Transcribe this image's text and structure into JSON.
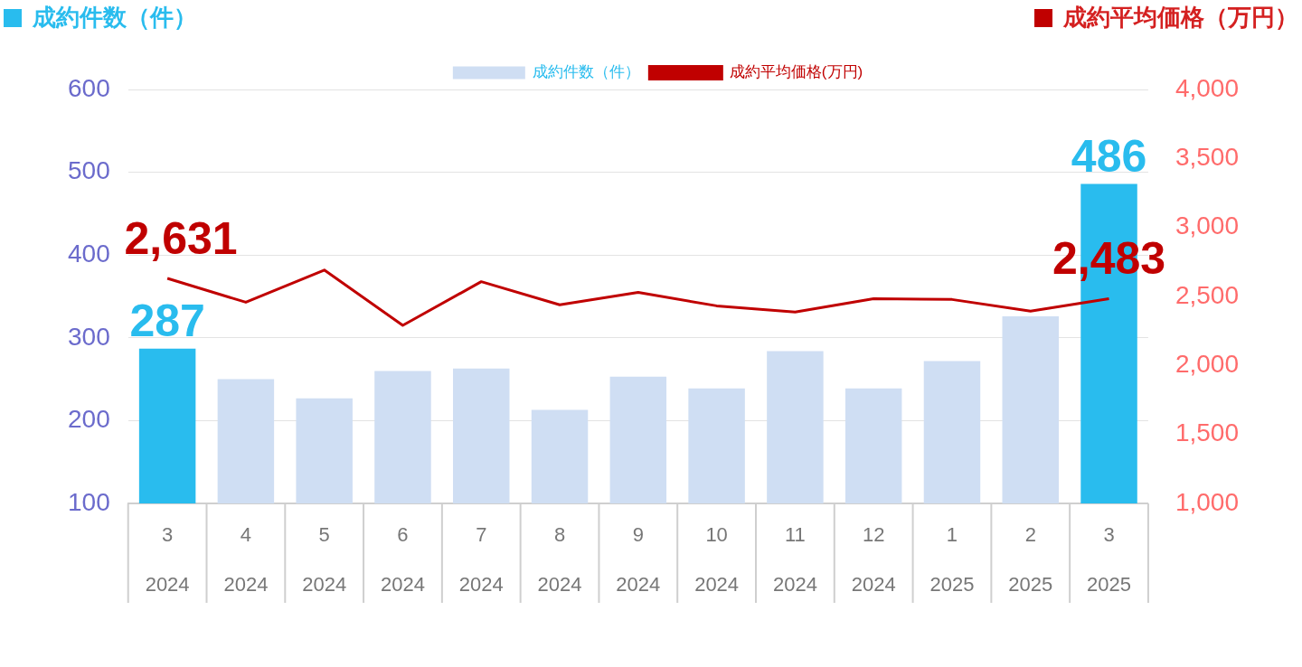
{
  "chart_data": {
    "type": "bar",
    "ylabel": "成約件数（件）",
    "y2label": "成約平均価格（万円）",
    "categories": [
      "3\n2024",
      "4\n2024",
      "5\n2024",
      "6\n2024",
      "7\n2024",
      "8\n2024",
      "9\n2024",
      "10\n2024",
      "11\n2024",
      "12\n2024",
      "1\n2025",
      "2\n2025",
      "3\n2025"
    ],
    "series": [
      {
        "name": "成約件数（件）",
        "color": "#cfdef3",
        "colors": [
          "#29bcee",
          "#cfdef3",
          "#cfdef3",
          "#cfdef3",
          "#cfdef3",
          "#cfdef3",
          "#cfdef3",
          "#cfdef3",
          "#cfdef3",
          "#cfdef3",
          "#cfdef3",
          "#cfdef3",
          "#29bcee"
        ],
        "values": [
          287,
          250,
          227,
          260,
          263,
          213,
          253,
          239,
          284,
          239,
          272,
          326,
          486
        ],
        "value_labels": [
          "287",
          null,
          null,
          null,
          null,
          null,
          null,
          null,
          null,
          null,
          null,
          null,
          "486"
        ]
      },
      {
        "name": "成約平均価格(万円)",
        "type": "line",
        "axis": "y2",
        "color": "#c00000",
        "values": [
          2631,
          2458,
          2691,
          2290,
          2607,
          2439,
          2529,
          2432,
          2387,
          2484,
          2478,
          2393,
          2483
        ],
        "value_labels": [
          "2,631",
          null,
          null,
          null,
          null,
          null,
          null,
          null,
          null,
          null,
          null,
          null,
          "2,483"
        ]
      }
    ],
    "ylim": [
      100,
      600
    ],
    "yticks": [
      100,
      200,
      300,
      400,
      500,
      600
    ],
    "y2lim": [
      1000,
      4000
    ],
    "y2ticks": [
      {
        "value": 1000,
        "label": "1,000"
      },
      {
        "value": 1500,
        "label": "1,500"
      },
      {
        "value": 2000,
        "label": "2,000"
      },
      {
        "value": 2500,
        "label": "2,500"
      },
      {
        "value": 3000,
        "label": "3,000"
      },
      {
        "value": 3500,
        "label": "3,500"
      },
      {
        "value": 4000,
        "label": "4,000"
      }
    ],
    "grid": "y",
    "legend": "top",
    "marker": "none",
    "line_style": "solid"
  }
}
